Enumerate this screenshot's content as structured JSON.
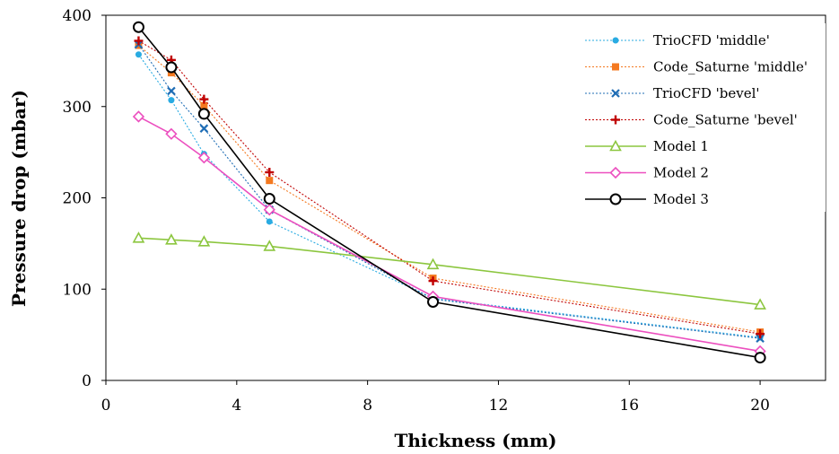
{
  "chart_data": {
    "type": "line",
    "title": "",
    "xlabel": "Thickness (mm)",
    "ylabel": "Pressure drop (mbar)",
    "xlim": [
      0,
      22
    ],
    "ylim": [
      0,
      400
    ],
    "x_ticks": [
      "0",
      "4",
      "8",
      "12",
      "16",
      "20"
    ],
    "y_ticks": [
      "0",
      "100",
      "200",
      "300",
      "400"
    ],
    "grid": false,
    "legend_position": "top-right",
    "series": [
      {
        "name": "TrioCFD 'middle'",
        "color": "#29abe2",
        "marker": "circle-filled",
        "line": "dotted",
        "x": [
          1,
          2,
          3,
          5,
          10,
          20
        ],
        "y": [
          357,
          307,
          248,
          174,
          90,
          47
        ]
      },
      {
        "name": "Code_Saturne 'middle'",
        "color": "#f47920",
        "marker": "square",
        "line": "dotted",
        "x": [
          1,
          2,
          3,
          5,
          10,
          20
        ],
        "y": [
          367,
          337,
          301,
          219,
          112,
          53
        ]
      },
      {
        "name": "TrioCFD 'bevel'",
        "color": "#1f6db5",
        "marker": "x",
        "line": "dotted",
        "x": [
          1,
          2,
          3,
          5,
          10,
          20
        ],
        "y": [
          368,
          317,
          276,
          187,
          89,
          46
        ]
      },
      {
        "name": "Code_Saturne 'bevel'",
        "color": "#c00000",
        "marker": "plus",
        "line": "dotted",
        "x": [
          1,
          2,
          3,
          5,
          10,
          20
        ],
        "y": [
          372,
          351,
          308,
          228,
          109,
          51
        ]
      },
      {
        "name": "Model 1",
        "color": "#8cc63f",
        "marker": "triangle",
        "line": "solid",
        "x": [
          1,
          2,
          3,
          5,
          10,
          20
        ],
        "y": [
          156,
          154,
          152,
          147,
          127,
          83
        ]
      },
      {
        "name": "Model 2",
        "color": "#ec4fbf",
        "marker": "diamond",
        "line": "solid",
        "x": [
          1,
          2,
          3,
          5,
          10,
          20
        ],
        "y": [
          289,
          270,
          244,
          187,
          92,
          32
        ]
      },
      {
        "name": "Model 3",
        "color": "#000000",
        "marker": "circle-open",
        "line": "solid",
        "x": [
          1,
          2,
          3,
          5,
          10,
          20
        ],
        "y": [
          387,
          343,
          292,
          199,
          86,
          25
        ]
      }
    ]
  }
}
